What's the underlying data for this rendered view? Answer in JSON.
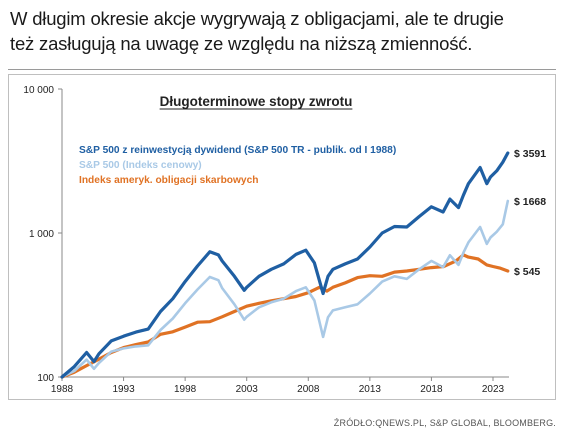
{
  "headline": {
    "line1": "W długim okresie akcje wygrywają z obligacjami, ale te drugie",
    "line2": "też zasługują na uwagę ze względu na niższą zmienność."
  },
  "source": "ŹRÓDŁO:QNEWS.PL, S&P GLOBAL, BLOOMBERG.",
  "chart_data": {
    "type": "line",
    "title": "Długoterminowe stopy zwrotu",
    "xlabel": "",
    "ylabel": "",
    "yscale": "log",
    "ylim": [
      100,
      10000
    ],
    "xlim": [
      1988,
      2024.3
    ],
    "x_ticks": [
      "1988",
      "1993",
      "1998",
      "2003",
      "2008",
      "2013",
      "2018",
      "2023"
    ],
    "y_ticks": [
      "100",
      "1 000",
      "10 000"
    ],
    "grid": false,
    "legend_position": "top-left",
    "series": [
      {
        "name": "S&P 500 z reinwestycją dywidend (S&P 500 TR - publik. od I 1988)",
        "color": "#1f5fa3",
        "end_label": "$ 3591",
        "points": [
          [
            1988,
            100
          ],
          [
            1989,
            118
          ],
          [
            1990,
            148
          ],
          [
            1990.6,
            128
          ],
          [
            1991,
            145
          ],
          [
            1992,
            178
          ],
          [
            1993,
            192
          ],
          [
            1994,
            205
          ],
          [
            1995,
            215
          ],
          [
            1996,
            285
          ],
          [
            1997,
            350
          ],
          [
            1998,
            460
          ],
          [
            1999,
            590
          ],
          [
            2000,
            740
          ],
          [
            2000.7,
            705
          ],
          [
            2001,
            640
          ],
          [
            2002,
            500
          ],
          [
            2002.8,
            400
          ],
          [
            2003,
            420
          ],
          [
            2004,
            500
          ],
          [
            2005,
            560
          ],
          [
            2006,
            610
          ],
          [
            2007,
            710
          ],
          [
            2007.8,
            760
          ],
          [
            2008.5,
            620
          ],
          [
            2009.2,
            380
          ],
          [
            2009.6,
            500
          ],
          [
            2010,
            560
          ],
          [
            2011,
            610
          ],
          [
            2012,
            660
          ],
          [
            2013,
            800
          ],
          [
            2014,
            1000
          ],
          [
            2015,
            1110
          ],
          [
            2016,
            1100
          ],
          [
            2017,
            1300
          ],
          [
            2018,
            1520
          ],
          [
            2018.95,
            1400
          ],
          [
            2019.5,
            1720
          ],
          [
            2020.2,
            1500
          ],
          [
            2020.6,
            1830
          ],
          [
            2021,
            2200
          ],
          [
            2021.95,
            2850
          ],
          [
            2022.5,
            2200
          ],
          [
            2022.8,
            2450
          ],
          [
            2023.3,
            2700
          ],
          [
            2023.8,
            3100
          ],
          [
            2024.2,
            3591
          ]
        ]
      },
      {
        "name": "S&P 500 (Indeks cenowy)",
        "color": "#a9c9e6",
        "end_label": "$ 1668",
        "points": [
          [
            1988,
            100
          ],
          [
            1989,
            110
          ],
          [
            1990,
            132
          ],
          [
            1990.6,
            114
          ],
          [
            1991,
            125
          ],
          [
            1992,
            150
          ],
          [
            1993,
            158
          ],
          [
            1994,
            163
          ],
          [
            1995,
            166
          ],
          [
            1996,
            212
          ],
          [
            1997,
            255
          ],
          [
            1998,
            325
          ],
          [
            1999,
            405
          ],
          [
            2000,
            495
          ],
          [
            2000.7,
            470
          ],
          [
            2001,
            415
          ],
          [
            2002,
            320
          ],
          [
            2002.8,
            250
          ],
          [
            2003,
            262
          ],
          [
            2004,
            305
          ],
          [
            2005,
            330
          ],
          [
            2006,
            350
          ],
          [
            2007,
            395
          ],
          [
            2007.8,
            420
          ],
          [
            2008.5,
            340
          ],
          [
            2009.2,
            190
          ],
          [
            2009.6,
            260
          ],
          [
            2010,
            290
          ],
          [
            2011,
            305
          ],
          [
            2012,
            320
          ],
          [
            2013,
            380
          ],
          [
            2014,
            460
          ],
          [
            2015,
            500
          ],
          [
            2016,
            480
          ],
          [
            2017,
            560
          ],
          [
            2018,
            640
          ],
          [
            2018.95,
            580
          ],
          [
            2019.5,
            700
          ],
          [
            2020.2,
            600
          ],
          [
            2020.6,
            730
          ],
          [
            2021,
            860
          ],
          [
            2021.95,
            1100
          ],
          [
            2022.5,
            840
          ],
          [
            2022.8,
            930
          ],
          [
            2023.3,
            1020
          ],
          [
            2023.8,
            1150
          ],
          [
            2024.2,
            1668
          ]
        ]
      },
      {
        "name": "Indeks ameryk. obligacji skarbowych",
        "color": "#e07224",
        "end_label": "$ 545",
        "points": [
          [
            1988,
            100
          ],
          [
            1989,
            108
          ],
          [
            1990,
            120
          ],
          [
            1991,
            133
          ],
          [
            1992,
            148
          ],
          [
            1993,
            160
          ],
          [
            1994,
            168
          ],
          [
            1995,
            175
          ],
          [
            1996,
            198
          ],
          [
            1997,
            206
          ],
          [
            1998,
            222
          ],
          [
            1999,
            240
          ],
          [
            2000,
            242
          ],
          [
            2001,
            262
          ],
          [
            2002,
            285
          ],
          [
            2003,
            310
          ],
          [
            2004,
            325
          ],
          [
            2005,
            338
          ],
          [
            2006,
            350
          ],
          [
            2007,
            362
          ],
          [
            2008,
            385
          ],
          [
            2008.9,
            420
          ],
          [
            2009.5,
            395
          ],
          [
            2010,
            420
          ],
          [
            2011,
            450
          ],
          [
            2012,
            490
          ],
          [
            2013,
            505
          ],
          [
            2014,
            500
          ],
          [
            2015,
            535
          ],
          [
            2016,
            545
          ],
          [
            2017,
            560
          ],
          [
            2018,
            575
          ],
          [
            2019,
            585
          ],
          [
            2020,
            640
          ],
          [
            2020.6,
            705
          ],
          [
            2021,
            680
          ],
          [
            2021.8,
            660
          ],
          [
            2022.5,
            600
          ],
          [
            2023,
            585
          ],
          [
            2023.6,
            570
          ],
          [
            2024.2,
            545
          ]
        ]
      }
    ]
  }
}
